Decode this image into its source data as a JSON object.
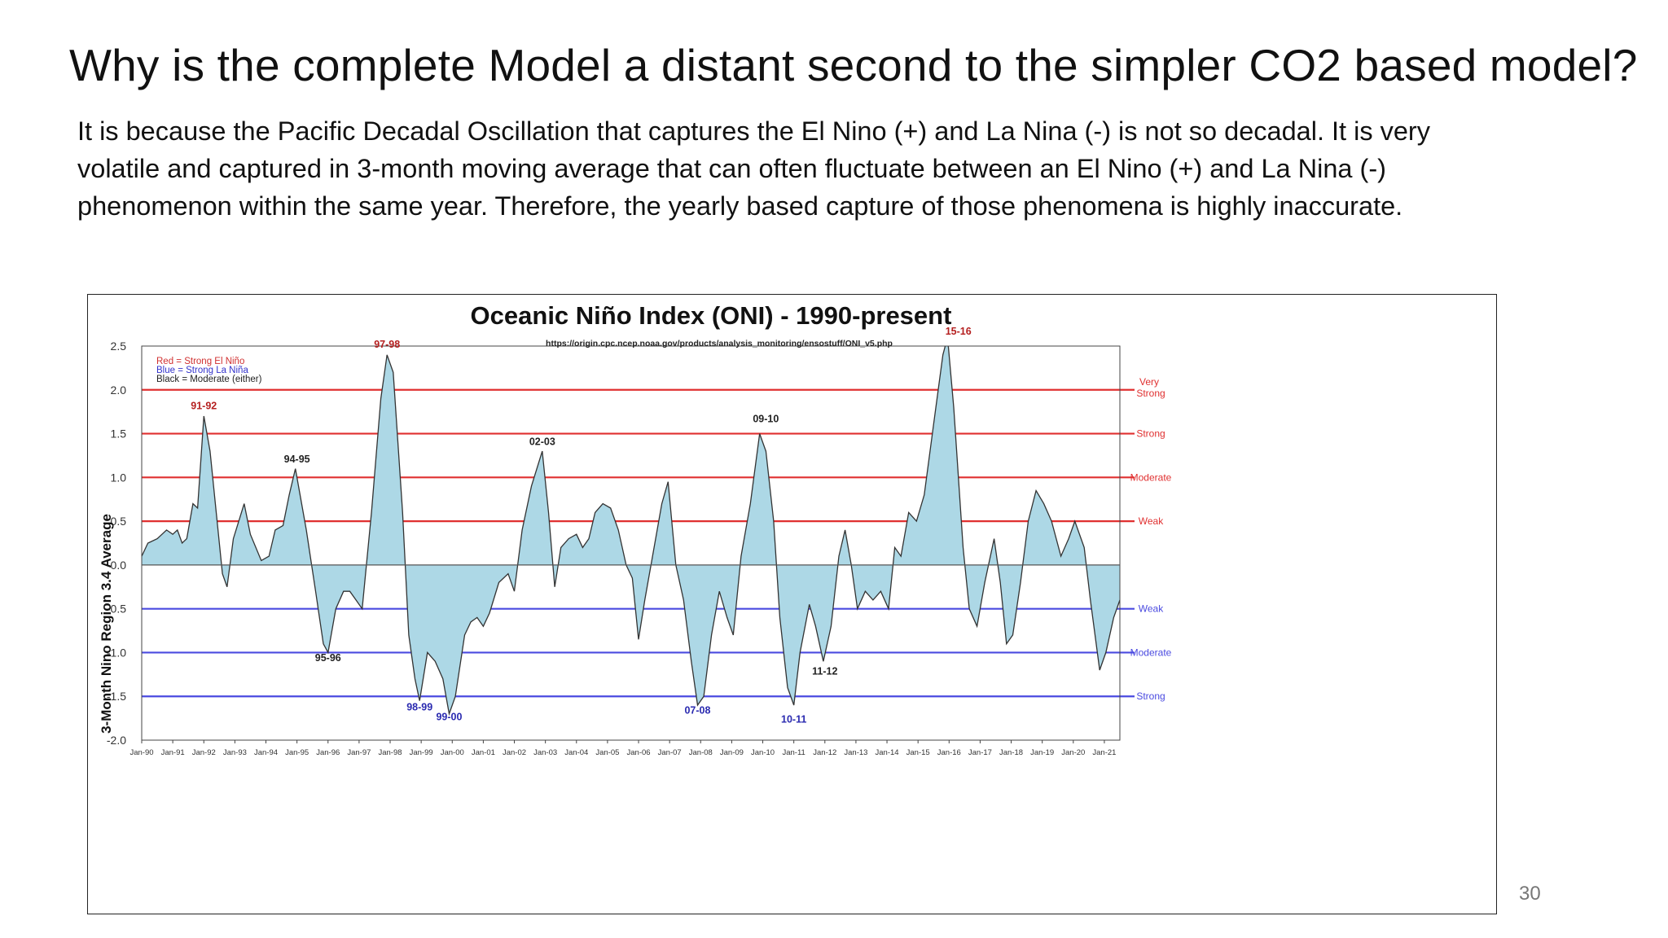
{
  "slide": {
    "title": "Why is the complete Model a distant second to the simpler CO2 based model?",
    "body": "It is because the Pacific Decadal Oscillation that captures the El Nino (+) and La Nina (-) is not so decadal. It is very volatile and captured in 3-month moving average that can often fluctuate between an El Nino (+) and La Nina (-) phenomenon within the same year. Therefore, the yearly based capture of those phenomena is highly inaccurate.",
    "page_number": "30"
  },
  "chart_data": {
    "type": "area",
    "title": "Oceanic Niño Index (ONI) - 1990-present",
    "subtitle": "https://origin.cpc.ncep.noaa.gov/products/analysis_monitoring/ensostuff/ONI_v5.php",
    "ylabel": "3-Month Nino Region 3.4 Average",
    "xlabel": "",
    "ylim": [
      -2.0,
      2.5
    ],
    "xlim": [
      1990.0,
      2021.5
    ],
    "y_ticks": [
      "2.5",
      "2.0",
      "1.5",
      "1.0",
      "0.5",
      "0.0",
      "-0.5",
      "-1.0",
      "-1.5",
      "-2.0"
    ],
    "x_ticks": [
      "Jan-90",
      "Jan-91",
      "Jan-92",
      "Jan-93",
      "Jan-94",
      "Jan-95",
      "Jan-96",
      "Jan-97",
      "Jan-98",
      "Jan-99",
      "Jan-00",
      "Jan-01",
      "Jan-02",
      "Jan-03",
      "Jan-04",
      "Jan-05",
      "Jan-06",
      "Jan-07",
      "Jan-08",
      "Jan-09",
      "Jan-10",
      "Jan-11",
      "Jan-12",
      "Jan-13",
      "Jan-14",
      "Jan-15",
      "Jan-16",
      "Jan-17",
      "Jan-18",
      "Jan-19",
      "Jan-20",
      "Jan-21"
    ],
    "legend": {
      "placement": "top-left",
      "entries": [
        {
          "text": "Red = Strong  El Niño",
          "color": "#d03030"
        },
        {
          "text": "Blue = Strong  La Niña",
          "color": "#3333cc"
        },
        {
          "text": "Black = Moderate  (either)",
          "color": "#222222"
        }
      ]
    },
    "threshold_lines": [
      {
        "value": 2.0,
        "label": "Very Strong",
        "color": "#e03030"
      },
      {
        "value": 1.5,
        "label": "Strong",
        "color": "#e03030"
      },
      {
        "value": 1.0,
        "label": "Moderate",
        "color": "#e03030"
      },
      {
        "value": 0.5,
        "label": "Weak",
        "color": "#e03030"
      },
      {
        "value": -0.5,
        "label": "Weak",
        "color": "#4a4ae0"
      },
      {
        "value": -1.0,
        "label": "Moderate",
        "color": "#4a4ae0"
      },
      {
        "value": -1.5,
        "label": "Strong",
        "color": "#4a4ae0"
      }
    ],
    "series": [
      {
        "fill": "#add8e6",
        "line": "#333333",
        "points": [
          [
            1990.0,
            0.1
          ],
          [
            1990.2,
            0.25
          ],
          [
            1990.5,
            0.3
          ],
          [
            1990.8,
            0.4
          ],
          [
            1991.0,
            0.35
          ],
          [
            1991.15,
            0.4
          ],
          [
            1991.3,
            0.25
          ],
          [
            1991.45,
            0.3
          ],
          [
            1991.65,
            0.7
          ],
          [
            1991.8,
            0.65
          ],
          [
            1992.0,
            1.7
          ],
          [
            1992.2,
            1.3
          ],
          [
            1992.4,
            0.6
          ],
          [
            1992.6,
            -0.1
          ],
          [
            1992.75,
            -0.25
          ],
          [
            1992.95,
            0.3
          ],
          [
            1993.3,
            0.7
          ],
          [
            1993.5,
            0.35
          ],
          [
            1993.85,
            0.05
          ],
          [
            1994.1,
            0.1
          ],
          [
            1994.3,
            0.4
          ],
          [
            1994.55,
            0.45
          ],
          [
            1994.75,
            0.8
          ],
          [
            1994.95,
            1.1
          ],
          [
            1995.3,
            0.4
          ],
          [
            1995.6,
            -0.3
          ],
          [
            1995.85,
            -0.9
          ],
          [
            1996.0,
            -1.0
          ],
          [
            1996.25,
            -0.5
          ],
          [
            1996.5,
            -0.3
          ],
          [
            1996.7,
            -0.3
          ],
          [
            1996.9,
            -0.4
          ],
          [
            1997.1,
            -0.5
          ],
          [
            1997.4,
            0.6
          ],
          [
            1997.7,
            1.9
          ],
          [
            1997.9,
            2.4
          ],
          [
            1998.1,
            2.2
          ],
          [
            1998.4,
            0.6
          ],
          [
            1998.6,
            -0.8
          ],
          [
            1998.8,
            -1.3
          ],
          [
            1998.95,
            -1.55
          ],
          [
            1999.2,
            -1.0
          ],
          [
            1999.45,
            -1.1
          ],
          [
            1999.7,
            -1.3
          ],
          [
            1999.9,
            -1.7
          ],
          [
            2000.1,
            -1.5
          ],
          [
            2000.4,
            -0.8
          ],
          [
            2000.6,
            -0.65
          ],
          [
            2000.8,
            -0.6
          ],
          [
            2001.0,
            -0.7
          ],
          [
            2001.2,
            -0.55
          ],
          [
            2001.5,
            -0.2
          ],
          [
            2001.8,
            -0.1
          ],
          [
            2002.0,
            -0.3
          ],
          [
            2002.25,
            0.4
          ],
          [
            2002.55,
            0.9
          ],
          [
            2002.9,
            1.3
          ],
          [
            2003.1,
            0.6
          ],
          [
            2003.3,
            -0.25
          ],
          [
            2003.5,
            0.2
          ],
          [
            2003.75,
            0.3
          ],
          [
            2004.0,
            0.35
          ],
          [
            2004.2,
            0.2
          ],
          [
            2004.4,
            0.3
          ],
          [
            2004.6,
            0.6
          ],
          [
            2004.85,
            0.7
          ],
          [
            2005.1,
            0.65
          ],
          [
            2005.35,
            0.4
          ],
          [
            2005.6,
            0.0
          ],
          [
            2005.8,
            -0.15
          ],
          [
            2006.0,
            -0.85
          ],
          [
            2006.2,
            -0.4
          ],
          [
            2006.45,
            0.1
          ],
          [
            2006.75,
            0.7
          ],
          [
            2006.95,
            0.95
          ],
          [
            2007.2,
            0.0
          ],
          [
            2007.45,
            -0.4
          ],
          [
            2007.7,
            -1.1
          ],
          [
            2007.9,
            -1.6
          ],
          [
            2008.1,
            -1.5
          ],
          [
            2008.35,
            -0.8
          ],
          [
            2008.6,
            -0.3
          ],
          [
            2008.85,
            -0.6
          ],
          [
            2009.05,
            -0.8
          ],
          [
            2009.3,
            0.1
          ],
          [
            2009.6,
            0.7
          ],
          [
            2009.9,
            1.5
          ],
          [
            2010.1,
            1.3
          ],
          [
            2010.35,
            0.5
          ],
          [
            2010.55,
            -0.6
          ],
          [
            2010.8,
            -1.4
          ],
          [
            2011.0,
            -1.6
          ],
          [
            2011.2,
            -1.0
          ],
          [
            2011.5,
            -0.45
          ],
          [
            2011.7,
            -0.7
          ],
          [
            2011.95,
            -1.1
          ],
          [
            2012.2,
            -0.7
          ],
          [
            2012.45,
            0.1
          ],
          [
            2012.65,
            0.4
          ],
          [
            2012.85,
            0.0
          ],
          [
            2013.05,
            -0.5
          ],
          [
            2013.3,
            -0.3
          ],
          [
            2013.55,
            -0.4
          ],
          [
            2013.8,
            -0.3
          ],
          [
            2014.05,
            -0.5
          ],
          [
            2014.25,
            0.2
          ],
          [
            2014.45,
            0.1
          ],
          [
            2014.7,
            0.6
          ],
          [
            2014.95,
            0.5
          ],
          [
            2015.2,
            0.8
          ],
          [
            2015.5,
            1.6
          ],
          [
            2015.8,
            2.4
          ],
          [
            2015.95,
            2.6
          ],
          [
            2016.15,
            1.8
          ],
          [
            2016.45,
            0.2
          ],
          [
            2016.65,
            -0.5
          ],
          [
            2016.9,
            -0.7
          ],
          [
            2017.15,
            -0.2
          ],
          [
            2017.45,
            0.3
          ],
          [
            2017.65,
            -0.2
          ],
          [
            2017.85,
            -0.9
          ],
          [
            2018.05,
            -0.8
          ],
          [
            2018.3,
            -0.2
          ],
          [
            2018.55,
            0.5
          ],
          [
            2018.8,
            0.85
          ],
          [
            2019.05,
            0.7
          ],
          [
            2019.3,
            0.5
          ],
          [
            2019.6,
            0.1
          ],
          [
            2019.85,
            0.3
          ],
          [
            2020.05,
            0.5
          ],
          [
            2020.35,
            0.2
          ],
          [
            2020.55,
            -0.4
          ],
          [
            2020.85,
            -1.2
          ],
          [
            2021.05,
            -1.0
          ],
          [
            2021.3,
            -0.6
          ],
          [
            2021.5,
            -0.4
          ]
        ]
      }
    ],
    "event_labels": [
      {
        "text": "91-92",
        "x": 1992.0,
        "y": 1.78,
        "color": "#b52020"
      },
      {
        "text": "94-95",
        "x": 1995.0,
        "y": 1.17,
        "color": "#222222"
      },
      {
        "text": "95-96",
        "x": 1996.0,
        "y": -1.1,
        "color": "#222222"
      },
      {
        "text": "97-98",
        "x": 1997.9,
        "y": 2.48,
        "color": "#b52020"
      },
      {
        "text": "98-99",
        "x": 1998.95,
        "y": -1.66,
        "color": "#2a2ab0"
      },
      {
        "text": "99-00",
        "x": 1999.9,
        "y": -1.77,
        "color": "#2a2ab0"
      },
      {
        "text": "02-03",
        "x": 2002.9,
        "y": 1.37,
        "color": "#222222"
      },
      {
        "text": "07-08",
        "x": 2007.9,
        "y": -1.7,
        "color": "#2a2ab0"
      },
      {
        "text": "09-10",
        "x": 2010.1,
        "y": 1.63,
        "color": "#222222"
      },
      {
        "text": "10-11",
        "x": 2011.0,
        "y": -1.8,
        "color": "#2a2ab0"
      },
      {
        "text": "11-12",
        "x": 2012.0,
        "y": -1.25,
        "color": "#222222"
      },
      {
        "text": "15-16",
        "x": 2016.3,
        "y": 2.63,
        "color": "#b52020"
      }
    ],
    "grid": false
  }
}
